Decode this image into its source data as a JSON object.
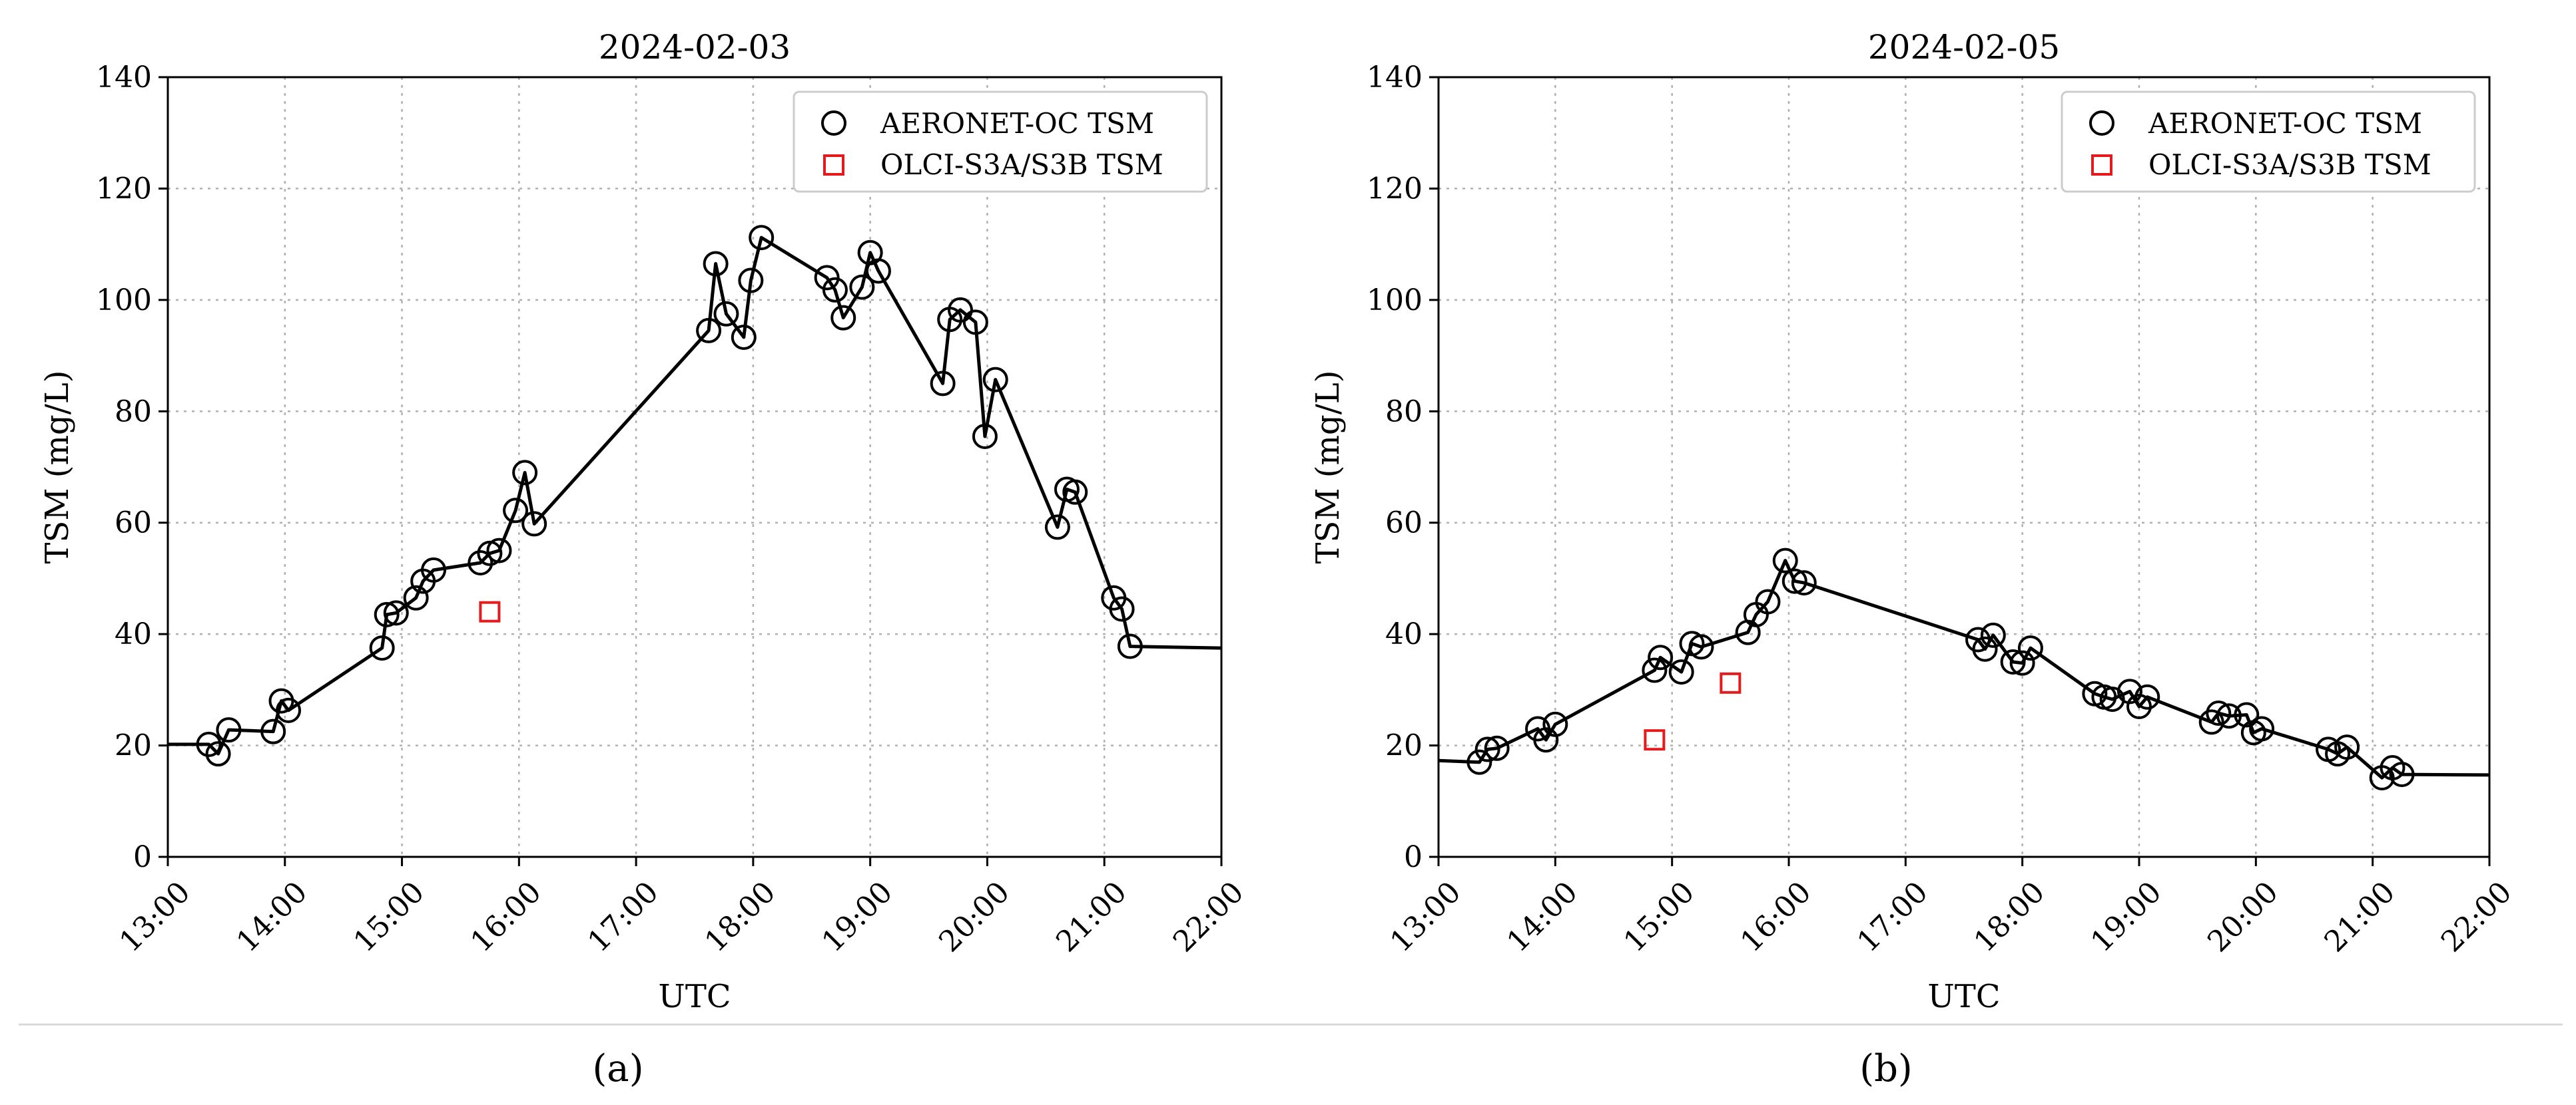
{
  "chart_data": [
    {
      "type": "line",
      "panel_label": "(a)",
      "title": "2024-02-03",
      "xlabel": "UTC",
      "ylabel": "TSM (mg/L)",
      "xlim": [
        13.0,
        22.0
      ],
      "ylim": [
        0,
        140
      ],
      "xticks": [
        "13:00",
        "14:00",
        "15:00",
        "16:00",
        "17:00",
        "18:00",
        "19:00",
        "20:00",
        "21:00",
        "22:00"
      ],
      "yticks": [
        0,
        20,
        40,
        60,
        80,
        100,
        120,
        140
      ],
      "grid": true,
      "legend_position": "top-right",
      "line_start": [
        13.0,
        20.2
      ],
      "line_end": [
        22.0,
        37.5
      ],
      "series": [
        {
          "name": "AERONET-OC TSM",
          "marker": "circle",
          "color": "#000000",
          "x": [
            13.35,
            13.43,
            13.52,
            13.9,
            13.97,
            14.03,
            14.83,
            14.87,
            14.95,
            15.12,
            15.18,
            15.27,
            15.67,
            15.75,
            15.83,
            15.97,
            16.05,
            16.13,
            17.62,
            17.68,
            17.77,
            17.92,
            17.98,
            18.07,
            18.63,
            18.7,
            18.77,
            18.93,
            19.0,
            19.07,
            19.62,
            19.68,
            19.77,
            19.9,
            19.98,
            20.07,
            20.6,
            20.68,
            20.75,
            21.08,
            21.15,
            21.22
          ],
          "y": [
            20.2,
            18.5,
            22.8,
            22.5,
            28.0,
            26.3,
            37.5,
            43.5,
            43.8,
            46.5,
            49.5,
            51.5,
            52.8,
            54.5,
            55.0,
            62.2,
            69.0,
            59.8,
            94.5,
            106.5,
            97.5,
            93.3,
            103.5,
            111.2,
            104.0,
            101.8,
            96.8,
            102.3,
            108.5,
            105.2,
            85.0,
            96.5,
            98.2,
            96.0,
            75.5,
            85.7,
            59.2,
            66.0,
            65.5,
            46.5,
            44.5,
            37.8
          ]
        },
        {
          "name": "OLCI-S3A/S3B TSM",
          "marker": "square",
          "color": "#e41a1c",
          "x": [
            15.75
          ],
          "y": [
            44.0
          ]
        }
      ]
    },
    {
      "type": "line",
      "panel_label": "(b)",
      "title": "2024-02-05",
      "xlabel": "UTC",
      "ylabel": "TSM (mg/L)",
      "xlim": [
        13.0,
        22.0
      ],
      "ylim": [
        0,
        140
      ],
      "xticks": [
        "13:00",
        "14:00",
        "15:00",
        "16:00",
        "17:00",
        "18:00",
        "19:00",
        "20:00",
        "21:00",
        "22:00"
      ],
      "yticks": [
        0,
        20,
        40,
        60,
        80,
        100,
        120,
        140
      ],
      "grid": true,
      "legend_position": "top-right",
      "line_start": [
        13.0,
        17.3
      ],
      "line_end": [
        22.0,
        14.7
      ],
      "series": [
        {
          "name": "AERONET-OC TSM",
          "marker": "circle",
          "color": "#000000",
          "x": [
            13.35,
            13.42,
            13.5,
            13.85,
            13.92,
            14.0,
            14.85,
            14.9,
            15.08,
            15.17,
            15.25,
            15.65,
            15.72,
            15.82,
            15.97,
            16.05,
            16.13,
            17.62,
            17.68,
            17.75,
            17.92,
            18.0,
            18.07,
            18.62,
            18.7,
            18.77,
            18.92,
            19.0,
            19.07,
            19.62,
            19.68,
            19.77,
            19.92,
            19.98,
            20.05,
            20.62,
            20.7,
            20.78,
            21.08,
            21.17,
            21.25
          ],
          "y": [
            17.0,
            19.3,
            19.5,
            23.0,
            21.0,
            23.8,
            33.5,
            35.8,
            33.2,
            38.3,
            37.7,
            40.3,
            43.5,
            45.8,
            53.2,
            49.5,
            49.2,
            39.0,
            37.3,
            39.8,
            35.0,
            34.8,
            37.5,
            29.3,
            28.7,
            28.3,
            29.7,
            27.0,
            28.7,
            24.2,
            25.8,
            25.3,
            25.5,
            22.3,
            23.0,
            19.3,
            18.5,
            19.7,
            14.2,
            16.0,
            14.8
          ]
        },
        {
          "name": "OLCI-S3A/S3B TSM",
          "marker": "square",
          "color": "#e41a1c",
          "x": [
            14.85,
            15.5
          ],
          "y": [
            21.0,
            31.2
          ]
        }
      ]
    }
  ]
}
